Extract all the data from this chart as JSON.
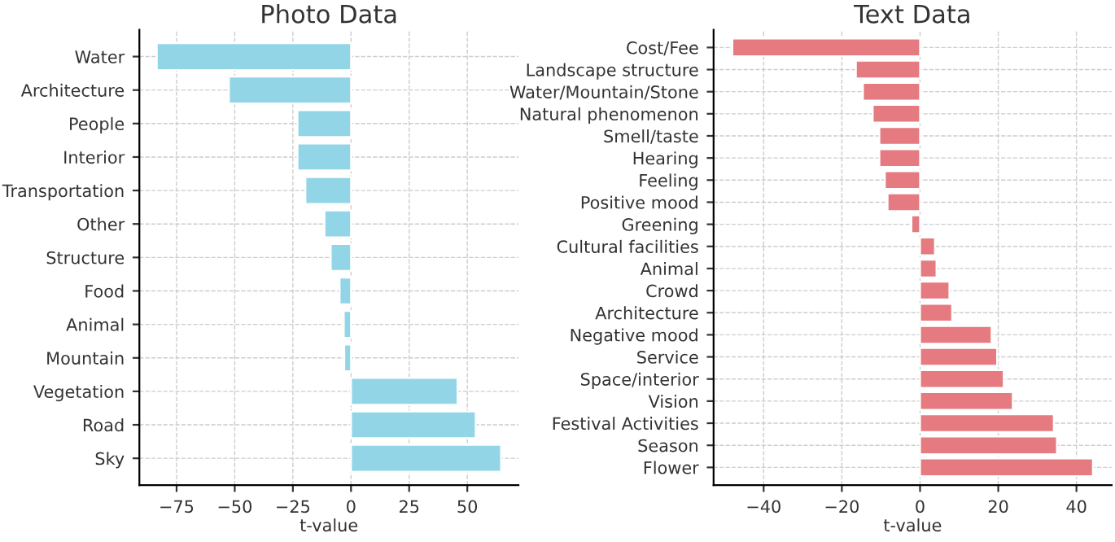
{
  "chart_data": [
    {
      "type": "bar",
      "orientation": "horizontal",
      "title": "Photo Data",
      "xlabel": "t-value",
      "categories": [
        "Water",
        "Architecture",
        "People",
        "Interior",
        "Transportation",
        "Other",
        "Structure",
        "Food",
        "Animal",
        "Mountain",
        "Vegetation",
        "Road",
        "Sky"
      ],
      "series": [
        {
          "color": "#92d5e6",
          "values": [
            -83.5,
            -52.5,
            -23,
            -23,
            -19.6,
            -11.4,
            -8.7,
            -4.9,
            -3.1,
            -2.9,
            45.8,
            53.6,
            64.5
          ]
        }
      ],
      "xlim": [
        -91,
        72
      ],
      "xticks": [
        {
          "value": -75,
          "label": "−75"
        },
        {
          "value": -50,
          "label": "−50"
        },
        {
          "value": -25,
          "label": "−25"
        },
        0,
        25,
        50
      ],
      "grid": true
    },
    {
      "type": "bar",
      "orientation": "horizontal",
      "title": "Text Data",
      "xlabel": "t-value",
      "categories": [
        "Cost/Fee",
        "Landscape structure",
        "Water/Mountain/Stone",
        "Natural phenomenon",
        "Smell/taste",
        "Hearing",
        "Feeling",
        "Positive mood",
        "Greening",
        "Cultural facilities",
        "Animal",
        "Crowd",
        "Architecture",
        "Negative mood",
        "Service",
        "Space/interior",
        "Vision",
        "Festival Activities",
        "Season",
        "Flower"
      ],
      "series": [
        {
          "color": "#e57a80",
          "values": [
            -48,
            -16.4,
            -14.6,
            -12.1,
            -10.4,
            -10.4,
            -9,
            -8.3,
            -2.2,
            3.8,
            4.2,
            7.5,
            8.2,
            18.3,
            19.7,
            21.4,
            23.7,
            34.2,
            35,
            44.2
          ]
        }
      ],
      "xlim": [
        -52.8,
        49
      ],
      "xticks": [
        {
          "value": -40,
          "label": "−40"
        },
        {
          "value": -20,
          "label": "−20"
        },
        0,
        20,
        40
      ],
      "grid": true
    }
  ]
}
